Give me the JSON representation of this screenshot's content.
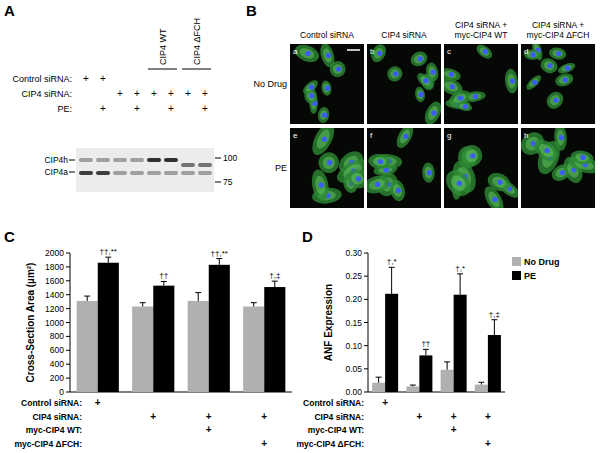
{
  "figure": {
    "panel_a": {
      "label": "A",
      "rows": [
        {
          "label": "Control siRNA:",
          "symbol": "+",
          "present": [
            true,
            true,
            false,
            false,
            false,
            false,
            false,
            false
          ]
        },
        {
          "label": "CIP4 siRNA:",
          "symbol": "+",
          "present": [
            false,
            false,
            true,
            true,
            true,
            true,
            true,
            true
          ]
        },
        {
          "label": "PE:",
          "symbol": "+",
          "present": [
            false,
            true,
            false,
            true,
            false,
            true,
            false,
            true
          ]
        }
      ],
      "constructs": [
        {
          "label": "CIP4 WT",
          "lanes": [
            4,
            5
          ]
        },
        {
          "label": "CIP4 ΔFCH",
          "lanes": [
            6,
            7
          ]
        }
      ],
      "bands": [
        "CIP4h",
        "CIP4a"
      ],
      "size_markers": [
        100,
        75
      ]
    },
    "panel_b": {
      "label": "B",
      "columns": [
        [
          "Control siRNA"
        ],
        [
          "CIP4 siRNA"
        ],
        [
          "CIP4 siRNA +",
          "myc-CIP4 WT"
        ],
        [
          "CIP4 siRNA +",
          "myc-CIP4 ΔFCH"
        ]
      ],
      "rows": [
        "No Drug",
        "PE"
      ],
      "image_labels": [
        "a",
        "b",
        "c",
        "d",
        "e",
        "f",
        "g",
        "h"
      ]
    }
  },
  "chart_data": [
    {
      "type": "bar",
      "panel": "C",
      "y_label": "Cross-Section Area (µm²)",
      "categories": [
        null,
        null,
        null,
        null
      ],
      "ylim": [
        0,
        2000
      ],
      "yticks": [
        0,
        200,
        400,
        600,
        800,
        1000,
        1200,
        1400,
        1600,
        1800,
        2000
      ],
      "grid": false,
      "series": [
        {
          "color": "#b0b0b0",
          "values": [
            1310,
            1230,
            1310,
            1230
          ],
          "errors": [
            70,
            55,
            120,
            55
          ]
        },
        {
          "color": "#000000",
          "values": [
            1860,
            1530,
            1830,
            1510
          ],
          "errors": [
            80,
            60,
            90,
            85
          ],
          "annotations": [
            "††,**",
            "††",
            "††,**",
            "†,‡"
          ]
        }
      ],
      "conditions": [
        {
          "label": "Control siRNA:",
          "symbol": "+",
          "present": [
            true,
            false,
            false,
            false
          ]
        },
        {
          "label": "CIP4 siRNA:",
          "symbol": "+",
          "present": [
            false,
            true,
            true,
            true
          ]
        },
        {
          "label": "myc-CIP4 WT:",
          "symbol": "+",
          "present": [
            false,
            false,
            true,
            false
          ]
        },
        {
          "label": "myc-CIP4 ΔFCH:",
          "symbol": "+",
          "present": [
            false,
            false,
            false,
            true
          ]
        }
      ]
    },
    {
      "type": "bar",
      "panel": "D",
      "y_label": "ANF Expression",
      "categories": [
        null,
        null,
        null,
        null
      ],
      "ylim": [
        0,
        0.3
      ],
      "yticks": [
        {
          "value": 0,
          "label": "0.00"
        },
        {
          "value": 0.05,
          "label": "0.05"
        },
        {
          "value": 0.1,
          "label": "0.10"
        },
        {
          "value": 0.15,
          "label": "0.15"
        },
        {
          "value": 0.2,
          "label": "0.20"
        },
        {
          "value": 0.25,
          "label": "0.25"
        },
        {
          "value": 0.3,
          "label": "0.30"
        }
      ],
      "grid": false,
      "legend": "right",
      "series": [
        {
          "name": "No Drug",
          "color": "#b0b0b0",
          "values": [
            0.02,
            0.012,
            0.048,
            0.016
          ],
          "errors": [
            0.012,
            0.003,
            0.017,
            0.005
          ]
        },
        {
          "name": "PE",
          "color": "#000000",
          "values": [
            0.212,
            0.079,
            0.21,
            0.123
          ],
          "errors": [
            0.057,
            0.013,
            0.045,
            0.033
          ],
          "annotations": [
            "†,*",
            "††",
            "†,*",
            "†,‡"
          ]
        }
      ],
      "conditions": [
        {
          "label": "Control siRNA:",
          "symbol": "+",
          "present": [
            true,
            false,
            false,
            false
          ]
        },
        {
          "label": "CIP4 siRNA:",
          "symbol": "+",
          "present": [
            false,
            true,
            true,
            true
          ]
        },
        {
          "label": "myc-CIP4 WT:",
          "symbol": "+",
          "present": [
            false,
            false,
            true,
            false
          ]
        },
        {
          "label": "myc-CIP4 ΔFCH:",
          "symbol": "+",
          "present": [
            false,
            false,
            false,
            true
          ]
        }
      ]
    }
  ]
}
